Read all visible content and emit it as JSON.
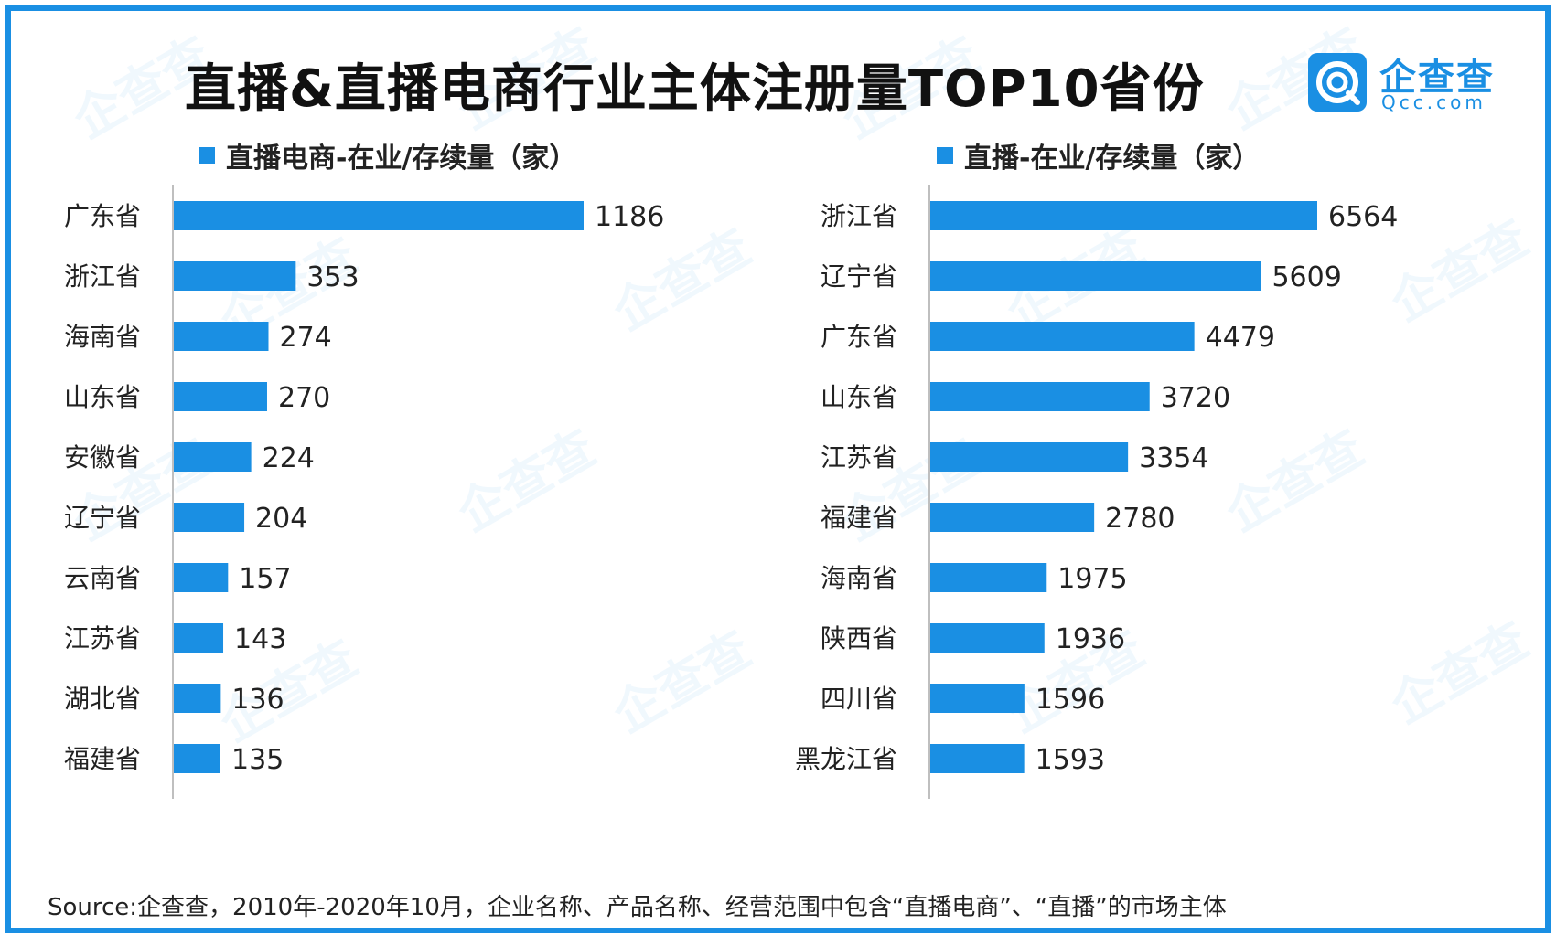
{
  "title": "直播&直播电商行业主体注册量TOP10省份",
  "logo": {
    "name": "企查查",
    "domain": "Qcc.com"
  },
  "watermark_text": "企查查",
  "source": "Source:企查查，2010年-2020年10月，企业名称、产品名称、经营范围中包含“直播电商”、“直播”的市场主体",
  "colors": {
    "bar": "#1a8fe3",
    "frame": "#1a8fe3",
    "text": "#222222"
  },
  "chart_data": [
    {
      "type": "bar",
      "orientation": "horizontal",
      "title": "",
      "legend": "直播电商-在业/存续量（家）",
      "categories": [
        "广东省",
        "浙江省",
        "海南省",
        "山东省",
        "安徽省",
        "辽宁省",
        "云南省",
        "江苏省",
        "湖北省",
        "福建省"
      ],
      "series": [
        {
          "name": "直播电商-在业/存续量（家）",
          "values": [
            1186,
            353,
            274,
            270,
            224,
            204,
            157,
            143,
            136,
            135
          ]
        }
      ],
      "xlim": [
        0,
        1186
      ],
      "grid": false
    },
    {
      "type": "bar",
      "orientation": "horizontal",
      "title": "",
      "legend": "直播-在业/存续量（家）",
      "categories": [
        "浙江省",
        "辽宁省",
        "广东省",
        "山东省",
        "江苏省",
        "福建省",
        "海南省",
        "陕西省",
        "四川省",
        "黑龙江省"
      ],
      "series": [
        {
          "name": "直播-在业/存续量（家）",
          "values": [
            6564,
            5609,
            4479,
            3720,
            3354,
            2780,
            1975,
            1936,
            1596,
            1593
          ]
        }
      ],
      "xlim": [
        0,
        6564
      ],
      "grid": false
    }
  ]
}
